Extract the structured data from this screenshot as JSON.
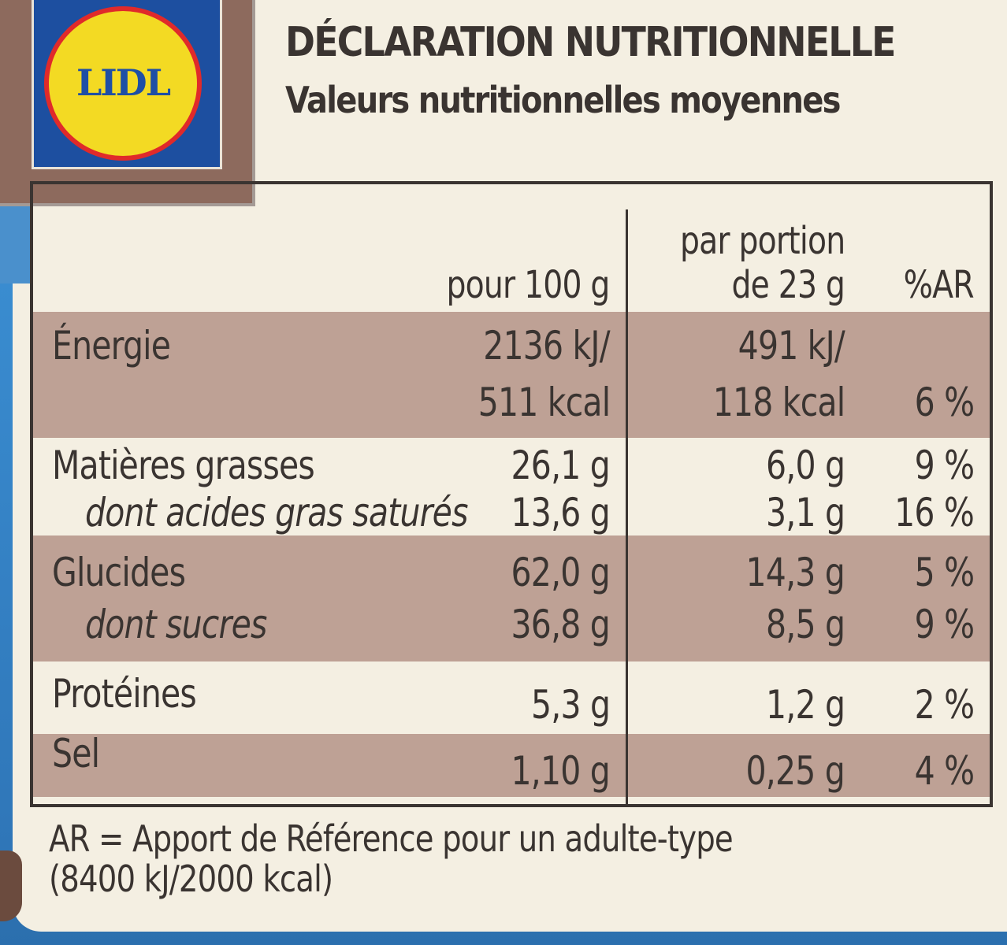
{
  "logo": {
    "brand": "LIDL",
    "colors": {
      "square": "#1d4fa0",
      "ring": "#e02a2a",
      "disc": "#f3da23",
      "text": "#1e4fa5"
    }
  },
  "heading": {
    "title": "DÉCLARATION NUTRITIONNELLE",
    "subtitle": "Valeurs nutritionnelles moyennes"
  },
  "table": {
    "columns": {
      "per_100": "pour 100 g",
      "portion_line1": "par portion",
      "portion_line2": "de 23 g",
      "ar": "%AR"
    },
    "rows": [
      {
        "label": "Énergie",
        "per_100_line1": "2136 kJ/",
        "per_100_line2": "511 kcal",
        "portion_line1": "491 kJ/",
        "portion_line2": "118 kcal",
        "ar": "6 %"
      },
      {
        "label": "Matières grasses",
        "per_100": "26,1 g",
        "portion": "6,0 g",
        "ar": "9 %"
      },
      {
        "label": "dont acides gras saturés",
        "per_100": "13,6 g",
        "portion": "3,1 g",
        "ar": "16 %"
      },
      {
        "label": "Glucides",
        "per_100": "62,0 g",
        "portion": "14,3 g",
        "ar": "5 %"
      },
      {
        "label": "dont sucres",
        "per_100": "36,8 g",
        "portion": "8,5 g",
        "ar": "9 %"
      },
      {
        "label": "Protéines",
        "per_100": "5,3 g",
        "portion": "1,2 g",
        "ar": "2 %"
      },
      {
        "label": "Sel",
        "per_100": "1,10 g",
        "portion": "0,25 g",
        "ar": "4 %"
      }
    ],
    "colors": {
      "band": "#bea195",
      "text": "#3a3431",
      "panel": "#f4efe2"
    }
  },
  "footnote": {
    "line1": "AR = Apport de Référence pour un adulte-type",
    "line2": "(8400 kJ/2000 kcal)"
  }
}
